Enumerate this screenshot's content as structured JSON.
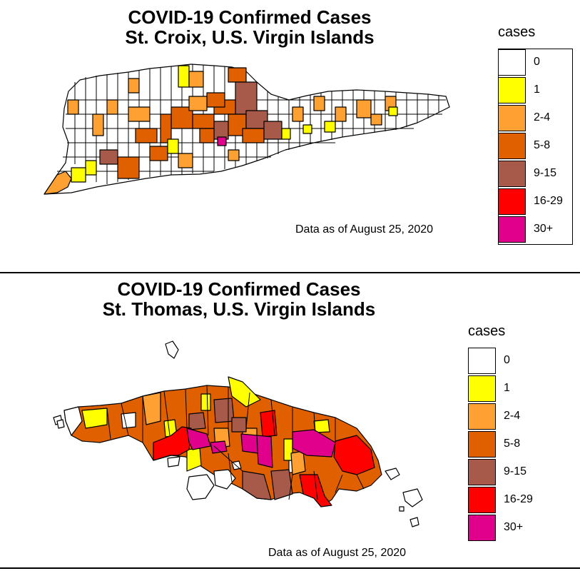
{
  "colors": {
    "c0": "#ffffff",
    "c1": "#ffff00",
    "c2": "#ffa033",
    "c3": "#e06000",
    "c4": "#a85a4a",
    "c5": "#ff0000",
    "c6": "#e0008c"
  },
  "legend_title": "cases",
  "legend_items": [
    {
      "label": "0",
      "color": "#ffffff"
    },
    {
      "label": "1",
      "color": "#ffff00"
    },
    {
      "label": "2-4",
      "color": "#ffa033"
    },
    {
      "label": "5-8",
      "color": "#e06000"
    },
    {
      "label": "9-15",
      "color": "#a85a4a"
    },
    {
      "label": "16-29",
      "color": "#ff0000"
    },
    {
      "label": "30+",
      "color": "#e0008c"
    }
  ],
  "panels": [
    {
      "title_line1": "COVID-19 Confirmed Cases",
      "title_line2": "St. Croix, U.S. Virgin Islands",
      "note": "Data as of August 25, 2020"
    },
    {
      "title_line1": "COVID-19 Confirmed Cases",
      "title_line2": "St. Thomas, U.S. Virgin Islands",
      "note": "Data as of August 25, 2020"
    }
  ]
}
